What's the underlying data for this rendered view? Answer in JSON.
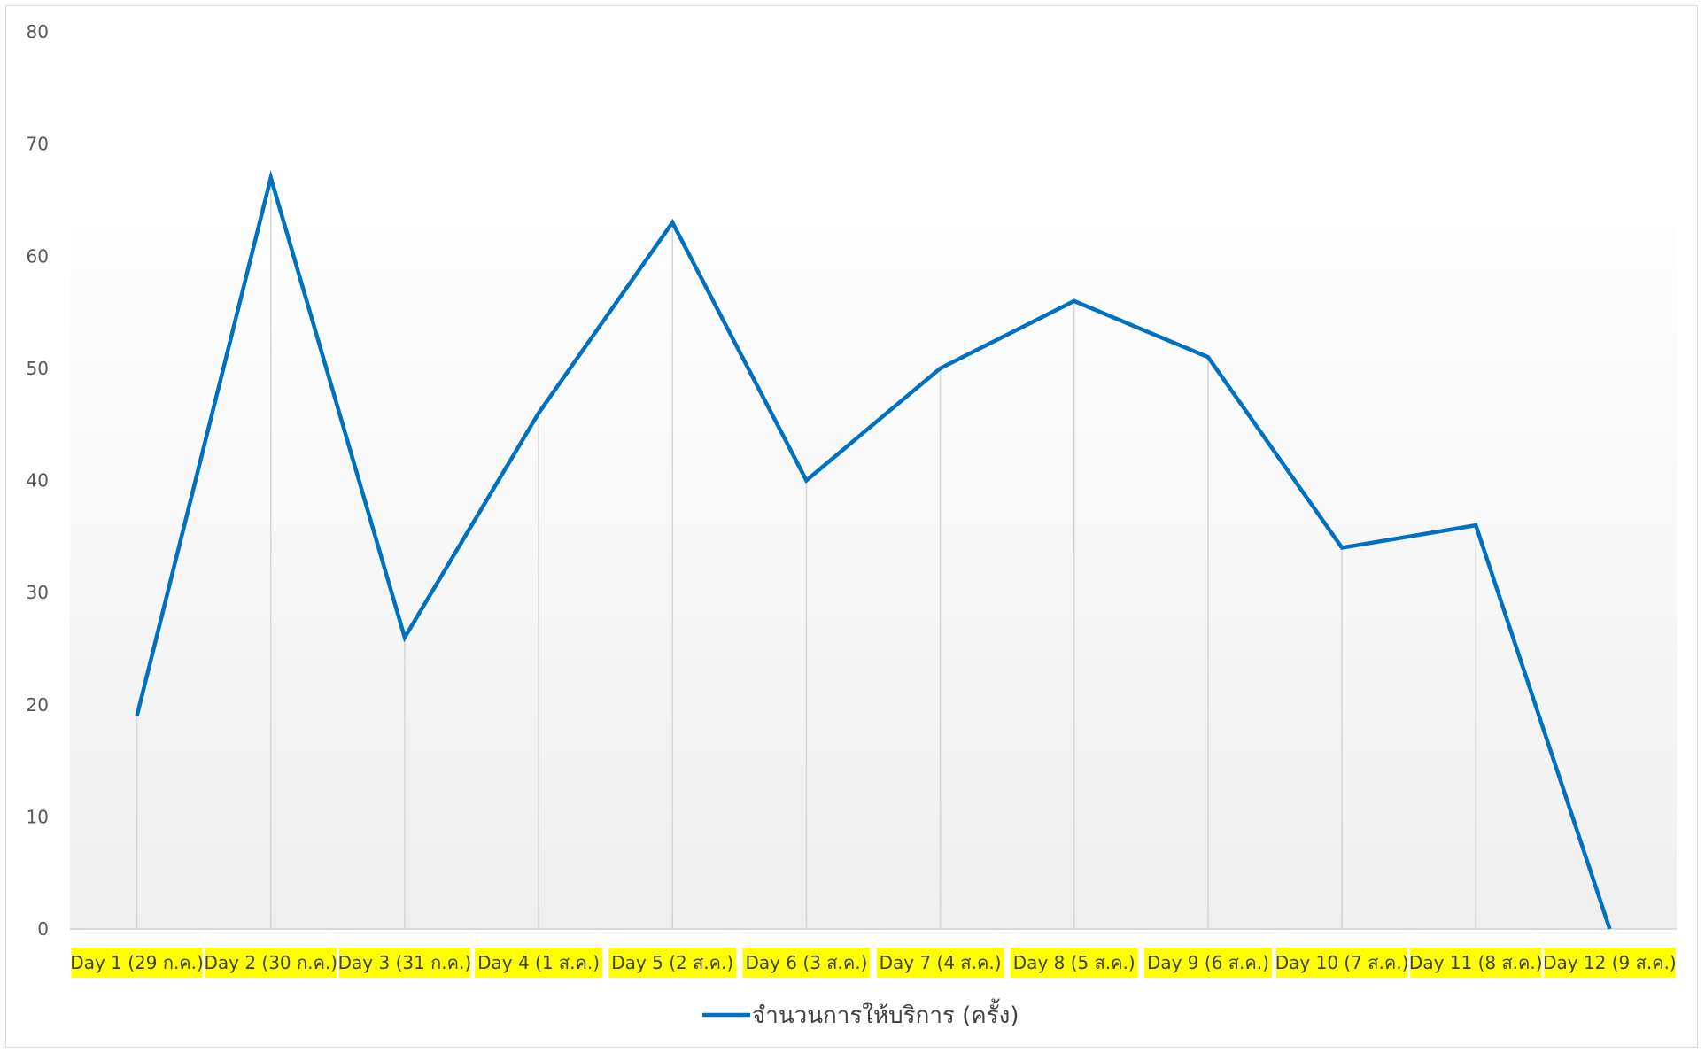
{
  "chart_data": {
    "type": "line",
    "categories": [
      "Day  1 (29 ก.ค.)",
      "Day  2 (30 ก.ค.)",
      "Day  3 (31 ก.ค.)",
      "Day  4 (1 ส.ค.)",
      "Day  5 (2 ส.ค.)",
      "Day  6 (3 ส.ค.)",
      "Day  7 (4 ส.ค.)",
      "Day  8 (5 ส.ค.)",
      "Day  9 (6 ส.ค.)",
      "Day  10 (7 ส.ค.)",
      "Day  11 (8 ส.ค.)",
      "Day  12 (9 ส.ค.)"
    ],
    "series": [
      {
        "name": "จำนวนการให้บริการ (ครั้ง)",
        "values": [
          19,
          67,
          26,
          46,
          63,
          40,
          50,
          56,
          51,
          34,
          36,
          0
        ],
        "color": "#0070c0"
      }
    ],
    "yticks": [
      "0",
      "10",
      "20",
      "30",
      "40",
      "50",
      "60",
      "70",
      "80"
    ],
    "ylim": [
      0,
      80
    ],
    "grid": "vertical drop lines",
    "legend": "bottom",
    "tick_label_highlight": "#ffff00"
  }
}
